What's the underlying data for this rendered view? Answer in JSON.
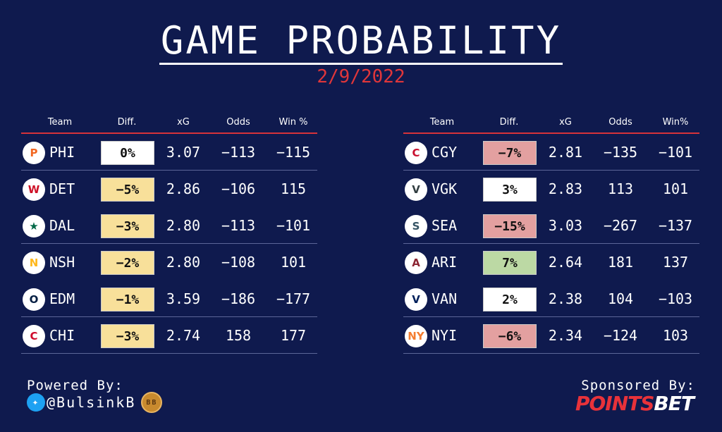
{
  "title": "GAME PROBABILITY",
  "date": "2/9/2022",
  "headers": {
    "team": "Team",
    "diff": "Diff.",
    "xg": "xG",
    "odds": "Odds",
    "win": "Win %",
    "win_right": "Win%"
  },
  "colors": {
    "background": "#0f1a4e",
    "accent_red": "#e0363a",
    "neutral": "#ffffff",
    "yellow": "#f8e09a",
    "red": "#e3a0a0",
    "green": "#bcd9a4"
  },
  "left_games": [
    {
      "team": "PHI",
      "icon": "flyers-logo-icon",
      "diff": "0%",
      "diff_color": "neutral",
      "xg": "3.07",
      "odds": "-113",
      "win": "-115"
    },
    {
      "team": "DET",
      "icon": "red-wings-logo-icon",
      "diff": "-5%",
      "diff_color": "yellow",
      "xg": "2.86",
      "odds": "-106",
      "win": "115"
    },
    {
      "team": "DAL",
      "icon": "stars-logo-icon",
      "diff": "-3%",
      "diff_color": "yellow",
      "xg": "2.80",
      "odds": "-113",
      "win": "-101"
    },
    {
      "team": "NSH",
      "icon": "predators-logo-icon",
      "diff": "-2%",
      "diff_color": "yellow",
      "xg": "2.80",
      "odds": "-108",
      "win": "101"
    },
    {
      "team": "EDM",
      "icon": "oilers-logo-icon",
      "diff": "-1%",
      "diff_color": "yellow",
      "xg": "3.59",
      "odds": "-186",
      "win": "-177"
    },
    {
      "team": "CHI",
      "icon": "blackhawks-logo-icon",
      "diff": "-3%",
      "diff_color": "yellow",
      "xg": "2.74",
      "odds": "158",
      "win": "177"
    }
  ],
  "right_games": [
    {
      "team": "CGY",
      "icon": "flames-logo-icon",
      "diff": "-7%",
      "diff_color": "red",
      "xg": "2.81",
      "odds": "-135",
      "win": "-101"
    },
    {
      "team": "VGK",
      "icon": "golden-knights-logo-icon",
      "diff": "3%",
      "diff_color": "neutral",
      "xg": "2.83",
      "odds": "113",
      "win": "101"
    },
    {
      "team": "SEA",
      "icon": "kraken-logo-icon",
      "diff": "-15%",
      "diff_color": "red",
      "xg": "3.03",
      "odds": "-267",
      "win": "-137"
    },
    {
      "team": "ARI",
      "icon": "coyotes-logo-icon",
      "diff": "7%",
      "diff_color": "green",
      "xg": "2.64",
      "odds": "181",
      "win": "137"
    },
    {
      "team": "VAN",
      "icon": "canucks-logo-icon",
      "diff": "2%",
      "diff_color": "neutral",
      "xg": "2.38",
      "odds": "104",
      "win": "-103"
    },
    {
      "team": "NYI",
      "icon": "islanders-logo-icon",
      "diff": "-6%",
      "diff_color": "red",
      "xg": "2.34",
      "odds": "-124",
      "win": "103"
    }
  ],
  "footer": {
    "powered_by": "Powered By:",
    "twitter_handle": "@BulsinkB",
    "bb_logo_text": "BB",
    "sponsored_by": "Sponsored By:",
    "sponsor_part1": "POINTS",
    "sponsor_part2": "BET"
  }
}
